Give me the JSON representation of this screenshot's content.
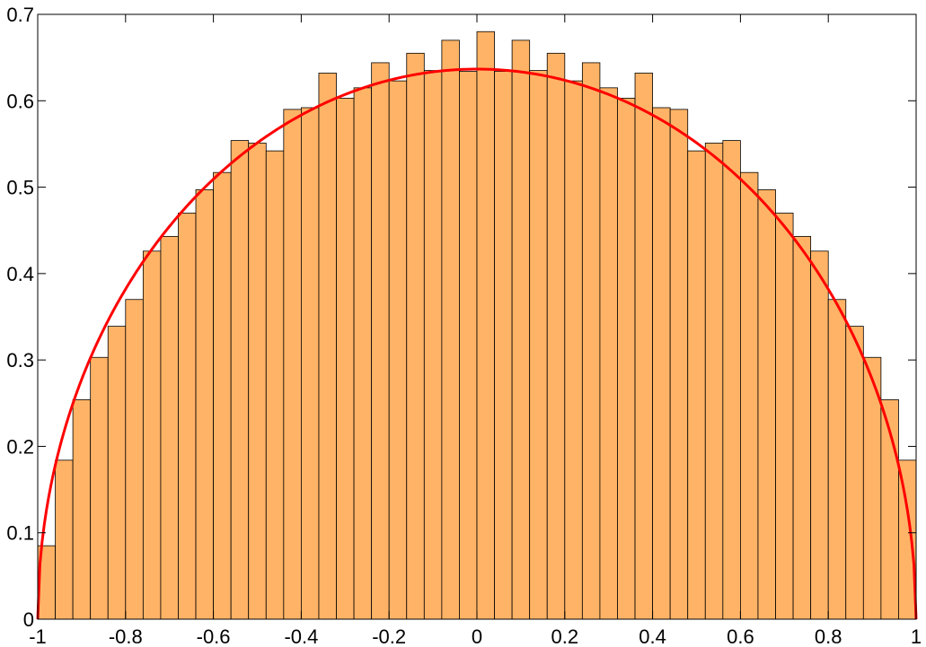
{
  "chart_data": {
    "type": "bar",
    "title": "",
    "xlabel": "",
    "ylabel": "",
    "xlim": [
      -1,
      1
    ],
    "ylim": [
      0,
      0.7
    ],
    "grid": false,
    "bin_edges_start": -1,
    "bin_width": 0.04,
    "values": [
      0.085,
      0.184,
      0.254,
      0.303,
      0.339,
      0.37,
      0.426,
      0.443,
      0.47,
      0.497,
      0.517,
      0.554,
      0.551,
      0.542,
      0.59,
      0.592,
      0.632,
      0.603,
      0.615,
      0.644,
      0.623,
      0.655,
      0.635,
      0.67,
      0.634,
      0.68,
      0.634,
      0.67,
      0.635,
      0.655,
      0.623,
      0.644,
      0.615,
      0.603,
      0.632,
      0.592,
      0.59,
      0.542,
      0.551,
      0.554,
      0.517,
      0.497,
      0.47,
      0.443,
      0.426,
      0.37,
      0.339,
      0.303,
      0.254,
      0.184,
      0.085
    ],
    "curve": {
      "type": "line",
      "formula": "(2/pi)*sqrt(1-x^2)",
      "color": "#ff0000"
    },
    "bar_color": "#ffb366",
    "bar_edge_color": "#000000",
    "x_ticks": [
      -1,
      -0.8,
      -0.6,
      -0.4,
      -0.2,
      0,
      0.2,
      0.4,
      0.6,
      0.8,
      1
    ],
    "x_tick_labels": [
      "-1",
      "-0.8",
      "-0.6",
      "-0.4",
      "-0.2",
      "0",
      "0.2",
      "0.4",
      "0.6",
      "0.8",
      "1"
    ],
    "y_ticks": [
      0,
      0.1,
      0.2,
      0.3,
      0.4,
      0.5,
      0.6,
      0.7
    ],
    "y_tick_labels": [
      "0",
      "0.1",
      "0.2",
      "0.3",
      "0.4",
      "0.5",
      "0.6",
      "0.7"
    ]
  }
}
